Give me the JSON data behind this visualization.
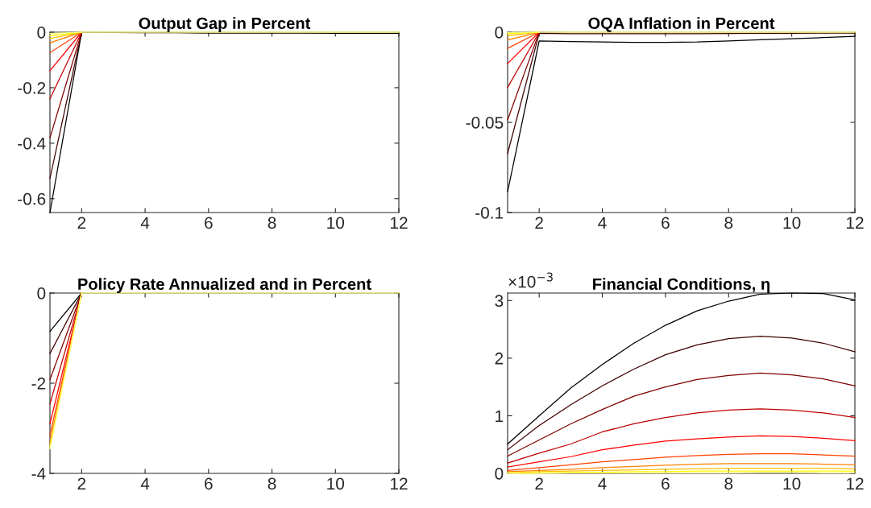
{
  "chart_data": [
    {
      "type": "line",
      "title": "Output Gap in Percent",
      "x": [
        1,
        2,
        3,
        4,
        5,
        6,
        7,
        8,
        9,
        10,
        11,
        12
      ],
      "xlim": [
        1,
        12
      ],
      "xticks": [
        2,
        4,
        6,
        8,
        10,
        12
      ],
      "ylim": [
        -0.65,
        0
      ],
      "yticks": [
        -0.6,
        -0.4,
        -0.2,
        0
      ],
      "grid": false,
      "series": [
        {
          "color": "#000000",
          "values": [
            -0.65,
            0,
            -0.001,
            -0.002,
            -0.002,
            -0.003,
            -0.003,
            -0.003,
            -0.003,
            -0.004,
            -0.004,
            -0.004
          ]
        },
        {
          "color": "#400000",
          "values": [
            -0.527,
            0,
            null,
            null,
            null,
            null,
            null,
            null,
            null,
            null,
            null,
            null
          ]
        },
        {
          "color": "#800000",
          "values": [
            -0.381,
            0,
            null,
            null,
            null,
            null,
            null,
            null,
            null,
            null,
            null,
            null
          ]
        },
        {
          "color": "#bf0000",
          "values": [
            -0.24,
            0,
            null,
            null,
            null,
            null,
            null,
            null,
            null,
            null,
            null,
            null
          ]
        },
        {
          "color": "#ff0000",
          "values": [
            -0.139,
            0,
            null,
            null,
            null,
            null,
            null,
            null,
            null,
            null,
            null,
            null
          ]
        },
        {
          "color": "#ff4000",
          "values": [
            -0.074,
            0,
            null,
            null,
            null,
            null,
            null,
            null,
            null,
            null,
            null,
            null
          ]
        },
        {
          "color": "#ff8000",
          "values": [
            -0.038,
            0,
            null,
            null,
            null,
            null,
            null,
            null,
            null,
            null,
            null,
            null
          ]
        },
        {
          "color": "#ffbf00",
          "values": [
            -0.023,
            0,
            null,
            null,
            null,
            null,
            null,
            null,
            null,
            null,
            null,
            null
          ]
        },
        {
          "color": "#ffff00",
          "values": [
            -0.013,
            0,
            null,
            null,
            null,
            null,
            null,
            null,
            null,
            null,
            null,
            null
          ]
        },
        {
          "color": "#ffff80",
          "values": [
            -0.005,
            0,
            0,
            0,
            0,
            0,
            0,
            0,
            0,
            0,
            0,
            0
          ]
        }
      ]
    },
    {
      "type": "line",
      "title": "OQA Inflation in Percent",
      "x": [
        1,
        2,
        3,
        4,
        5,
        6,
        7,
        8,
        9,
        10,
        11,
        12
      ],
      "xlim": [
        1,
        12
      ],
      "xticks": [
        2,
        4,
        6,
        8,
        10,
        12
      ],
      "ylim": [
        -0.1,
        0
      ],
      "yticks": [
        -0.1,
        -0.05,
        0
      ],
      "grid": false,
      "series": [
        {
          "color": "#000000",
          "values": [
            -0.0884,
            -0.0048,
            -0.0052,
            -0.0054,
            -0.0056,
            -0.0056,
            -0.0054,
            -0.0048,
            -0.0042,
            -0.0036,
            -0.003,
            -0.0023
          ]
        },
        {
          "color": "#400000",
          "values": [
            -0.0673,
            -0.0006,
            -0.0008,
            -0.0008,
            -0.0008,
            -0.0008,
            -0.0008,
            -0.0007,
            -0.0006,
            -0.0006,
            -0.0005,
            -0.0005
          ]
        },
        {
          "color": "#800000",
          "values": [
            -0.0486,
            0,
            null,
            null,
            null,
            null,
            null,
            null,
            null,
            null,
            null,
            null
          ]
        },
        {
          "color": "#bf0000",
          "values": [
            -0.0306,
            0,
            null,
            null,
            null,
            null,
            null,
            null,
            null,
            null,
            null,
            null
          ]
        },
        {
          "color": "#ff0000",
          "values": [
            -0.0174,
            0,
            null,
            null,
            null,
            null,
            null,
            null,
            null,
            null,
            null,
            null
          ]
        },
        {
          "color": "#ff4000",
          "values": [
            -0.009,
            0,
            null,
            null,
            null,
            null,
            null,
            null,
            null,
            null,
            null,
            null
          ]
        },
        {
          "color": "#ff8000",
          "values": [
            -0.0043,
            0,
            null,
            null,
            null,
            null,
            null,
            null,
            null,
            null,
            null,
            null
          ]
        },
        {
          "color": "#ffbf00",
          "values": [
            -0.002,
            0,
            null,
            null,
            null,
            null,
            null,
            null,
            null,
            null,
            null,
            null
          ]
        },
        {
          "color": "#ffff00",
          "values": [
            -0.0008,
            0,
            null,
            null,
            null,
            null,
            null,
            null,
            null,
            null,
            null,
            null
          ]
        },
        {
          "color": "#ffff80",
          "values": [
            -0.0002,
            0,
            0,
            0,
            0,
            0,
            0,
            0,
            0,
            0,
            0,
            0
          ]
        }
      ]
    },
    {
      "type": "line",
      "title": "Policy Rate Annualized and in Percent",
      "x": [
        1,
        2,
        3,
        4,
        5,
        6,
        7,
        8,
        9,
        10,
        11,
        12
      ],
      "xlim": [
        1,
        12
      ],
      "xticks": [
        2,
        4,
        6,
        8,
        10,
        12
      ],
      "ylim": [
        -4,
        0
      ],
      "yticks": [
        -4,
        -2,
        0
      ],
      "grid": false,
      "series": [
        {
          "color": "#000000",
          "values": [
            -0.85,
            0,
            null,
            null,
            null,
            null,
            null,
            null,
            null,
            null,
            null,
            null
          ]
        },
        {
          "color": "#400000",
          "values": [
            -1.34,
            0,
            null,
            null,
            null,
            null,
            null,
            null,
            null,
            null,
            null,
            null
          ]
        },
        {
          "color": "#800000",
          "values": [
            -1.92,
            0,
            null,
            null,
            null,
            null,
            null,
            null,
            null,
            null,
            null,
            null
          ]
        },
        {
          "color": "#bf0000",
          "values": [
            -2.46,
            0,
            null,
            null,
            null,
            null,
            null,
            null,
            null,
            null,
            null,
            null
          ]
        },
        {
          "color": "#ff0000",
          "values": [
            -2.9,
            0,
            null,
            null,
            null,
            null,
            null,
            null,
            null,
            null,
            null,
            null
          ]
        },
        {
          "color": "#ff4000",
          "values": [
            -3.15,
            0,
            null,
            null,
            null,
            null,
            null,
            null,
            null,
            null,
            null,
            null
          ]
        },
        {
          "color": "#ff8000",
          "values": [
            -3.31,
            0,
            null,
            null,
            null,
            null,
            null,
            null,
            null,
            null,
            null,
            null
          ]
        },
        {
          "color": "#ffbf00",
          "values": [
            -3.39,
            0,
            null,
            null,
            null,
            null,
            null,
            null,
            null,
            null,
            null,
            null
          ]
        },
        {
          "color": "#ffff00",
          "values": [
            -3.43,
            0,
            null,
            null,
            null,
            null,
            null,
            null,
            null,
            null,
            null,
            null
          ]
        },
        {
          "color": "#ffff80",
          "values": [
            -3.46,
            0,
            0,
            0,
            0,
            0,
            0,
            0,
            0,
            0,
            0,
            0
          ]
        }
      ]
    },
    {
      "type": "line",
      "title": "Financial Conditions, η",
      "annotations": [
        "×10$^{−3}$"
      ],
      "x": [
        1,
        2,
        3,
        4,
        5,
        6,
        7,
        8,
        9,
        10,
        11,
        12
      ],
      "xlim": [
        1,
        12
      ],
      "xticks": [
        2,
        4,
        6,
        8,
        10,
        12
      ],
      "ylim": [
        0,
        3.13
      ],
      "yticks": [
        0,
        1,
        2,
        3
      ],
      "grid": false,
      "series": [
        {
          "color": "#000000",
          "values": [
            0.51,
            1.0,
            1.48,
            1.89,
            2.26,
            2.57,
            2.82,
            2.99,
            3.11,
            3.13,
            3.12,
            3.01
          ]
        },
        {
          "color": "#400000",
          "values": [
            0.41,
            0.83,
            1.19,
            1.52,
            1.81,
            2.06,
            2.23,
            2.34,
            2.38,
            2.35,
            2.26,
            2.11
          ]
        },
        {
          "color": "#800000",
          "values": [
            0.3,
            0.58,
            0.86,
            1.11,
            1.34,
            1.5,
            1.63,
            1.7,
            1.74,
            1.71,
            1.64,
            1.52
          ]
        },
        {
          "color": "#bf0000",
          "values": [
            0.18,
            0.35,
            0.51,
            0.72,
            0.86,
            0.97,
            1.05,
            1.1,
            1.12,
            1.1,
            1.05,
            0.97
          ]
        },
        {
          "color": "#ff0000",
          "values": [
            0.11,
            0.2,
            0.29,
            0.41,
            0.49,
            0.56,
            0.6,
            0.63,
            0.65,
            0.64,
            0.61,
            0.57
          ]
        },
        {
          "color": "#ff4000",
          "values": [
            0.05,
            0.1,
            0.15,
            0.2,
            0.24,
            0.28,
            0.31,
            0.33,
            0.34,
            0.34,
            0.32,
            0.3
          ]
        },
        {
          "color": "#ff8000",
          "values": [
            0.03,
            0.05,
            0.07,
            0.1,
            0.12,
            0.14,
            0.16,
            0.17,
            0.17,
            0.17,
            0.16,
            0.15
          ]
        },
        {
          "color": "#ffbf00",
          "values": [
            0.01,
            0.03,
            0.04,
            0.05,
            0.06,
            0.07,
            0.08,
            0.09,
            0.09,
            0.09,
            0.09,
            0.08
          ]
        },
        {
          "color": "#ffff00",
          "values": [
            0.01,
            0.01,
            0.02,
            0.02,
            0.03,
            0.03,
            0.04,
            0.04,
            0.04,
            0.04,
            0.04,
            0.04
          ]
        },
        {
          "color": "#ffff80",
          "values": [
            0,
            0,
            0.01,
            0.01,
            0.01,
            0.01,
            0.01,
            0.01,
            0.02,
            0.02,
            0.01,
            0.01
          ]
        }
      ]
    }
  ]
}
